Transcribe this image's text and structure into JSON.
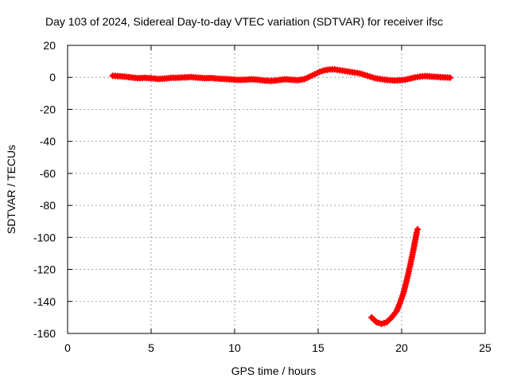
{
  "chart_data": {
    "type": "scatter",
    "title": "Day 103 of 2024, Sidereal Day-to-day VTEC variation (SDTVAR) for receiver ifsc",
    "xlabel": "GPS time / hours",
    "ylabel": "SDTVAR / TECUs",
    "xlim": [
      0,
      25
    ],
    "ylim": [
      -160,
      20
    ],
    "xticks": [
      0,
      5,
      10,
      15,
      20,
      25
    ],
    "yticks": [
      20,
      0,
      -20,
      -40,
      -60,
      -80,
      -100,
      -120,
      -140,
      -160
    ],
    "grid": true,
    "legend": "none",
    "marker_color": "#ff0000",
    "series": [
      {
        "segments": [
          [
            [
              2.7,
              1.0
            ],
            [
              3.0,
              0.8
            ],
            [
              3.4,
              0.5
            ],
            [
              3.8,
              0.0
            ],
            [
              4.2,
              -0.5
            ],
            [
              4.6,
              -0.3
            ],
            [
              5.0,
              -0.5
            ],
            [
              5.4,
              -1.0
            ],
            [
              5.8,
              -0.8
            ],
            [
              6.2,
              -0.3
            ],
            [
              6.6,
              -0.2
            ],
            [
              7.0,
              0.0
            ],
            [
              7.4,
              0.2
            ],
            [
              7.8,
              -0.2
            ],
            [
              8.2,
              -0.5
            ],
            [
              8.6,
              -0.4
            ],
            [
              9.0,
              -0.8
            ],
            [
              9.4,
              -1.0
            ],
            [
              9.8,
              -1.3
            ],
            [
              10.2,
              -1.6
            ],
            [
              10.6,
              -1.5
            ],
            [
              11.0,
              -1.2
            ],
            [
              11.4,
              -1.5
            ],
            [
              11.8,
              -2.0
            ],
            [
              12.2,
              -2.2
            ],
            [
              12.6,
              -1.8
            ],
            [
              13.0,
              -1.2
            ],
            [
              13.4,
              -1.5
            ],
            [
              13.8,
              -1.8
            ],
            [
              14.2,
              -1.0
            ],
            [
              14.5,
              0.5
            ],
            [
              14.8,
              2.0
            ],
            [
              15.1,
              3.5
            ],
            [
              15.4,
              4.5
            ],
            [
              15.7,
              5.0
            ],
            [
              16.0,
              5.0
            ],
            [
              16.3,
              4.5
            ],
            [
              16.6,
              4.0
            ],
            [
              16.9,
              3.5
            ],
            [
              17.2,
              3.0
            ],
            [
              17.5,
              2.5
            ],
            [
              17.8,
              1.5
            ],
            [
              18.1,
              0.5
            ],
            [
              18.4,
              -0.5
            ],
            [
              18.7,
              -1.0
            ],
            [
              19.0,
              -1.5
            ],
            [
              19.3,
              -1.8
            ],
            [
              19.6,
              -2.0
            ],
            [
              19.9,
              -1.8
            ],
            [
              20.2,
              -1.5
            ],
            [
              20.5,
              -0.8
            ],
            [
              20.8,
              0.0
            ],
            [
              21.1,
              0.5
            ],
            [
              21.4,
              0.8
            ],
            [
              21.8,
              0.5
            ],
            [
              22.2,
              0.2
            ],
            [
              22.6,
              0.0
            ],
            [
              22.9,
              -0.2
            ]
          ],
          [
            [
              18.2,
              -150.0
            ],
            [
              18.5,
              -153.0
            ],
            [
              18.8,
              -154.0
            ],
            [
              19.1,
              -153.0
            ],
            [
              19.4,
              -150.0
            ],
            [
              19.7,
              -146.0
            ],
            [
              19.9,
              -141.0
            ],
            [
              20.1,
              -135.0
            ],
            [
              20.3,
              -127.0
            ],
            [
              20.5,
              -118.0
            ],
            [
              20.7,
              -108.0
            ],
            [
              20.9,
              -97.0
            ],
            [
              20.95,
              -95.0
            ]
          ]
        ]
      }
    ]
  }
}
